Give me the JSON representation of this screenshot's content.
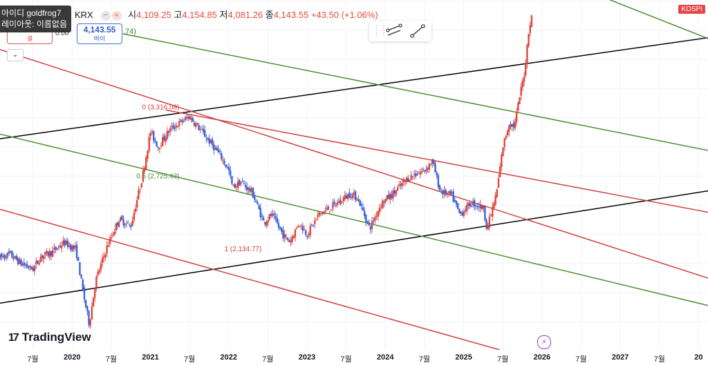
{
  "tooltip": {
    "line1": "아이디 goldfrog7",
    "line2": "레이아웃: 이름없음"
  },
  "header": {
    "exchange": "· KRX",
    "open_label": "시",
    "open": "4,109.25",
    "high_label": "고",
    "high": "4,154.85",
    "low_label": "저",
    "low": "4,081.26",
    "close_label": "종",
    "close": "4,143.55",
    "change": "+43.50 (+1.06%)",
    "dash_icon_glyph": "−",
    "wave_icon_glyph": "≈"
  },
  "trade": {
    "sell_price": "4,143.55",
    "sell_label": "셀",
    "spread": "0.00",
    "buy_price": "4,143.55",
    "buy_label": "바이",
    "truncated_value": ".74)"
  },
  "collapse_glyph": "⌄",
  "symbol_badge": "KOSPI",
  "logo": {
    "mark": "17",
    "text": "TradingView"
  },
  "bolt_glyph": "⚡",
  "chart_data": {
    "type": "line",
    "title": "KOSPI",
    "fib_labels": [
      {
        "level": "0",
        "text": "0 (3,316.08)",
        "value": 3316.08
      },
      {
        "level": "0.5",
        "text": "0.5 (2,725.43)",
        "value": 2725.43
      },
      {
        "level": "1",
        "text": "1 (2,134.77)",
        "value": 2134.77
      }
    ],
    "time_axis": [
      {
        "label": "7월",
        "year": 2019.5
      },
      {
        "label": "2020",
        "year": 2020.0,
        "bold": true
      },
      {
        "label": "7월",
        "year": 2020.5
      },
      {
        "label": "2021",
        "year": 2021.0,
        "bold": true
      },
      {
        "label": "7월",
        "year": 2021.5
      },
      {
        "label": "2022",
        "year": 2022.0,
        "bold": true
      },
      {
        "label": "7월",
        "year": 2022.5
      },
      {
        "label": "2023",
        "year": 2023.0,
        "bold": true
      },
      {
        "label": "7월",
        "year": 2023.5
      },
      {
        "label": "2024",
        "year": 2024.0,
        "bold": true
      },
      {
        "label": "7월",
        "year": 2024.5
      },
      {
        "label": "2025",
        "year": 2025.0,
        "bold": true
      },
      {
        "label": "7월",
        "year": 2025.5
      },
      {
        "label": "2026",
        "year": 2026.0,
        "bold": true
      },
      {
        "label": "7월",
        "year": 2026.5
      },
      {
        "label": "2027",
        "year": 2027.0,
        "bold": true
      },
      {
        "label": "7월",
        "year": 2027.5
      },
      {
        "label": "20",
        "year": 2028.0,
        "bold": true
      }
    ],
    "x_range": [
      2019.08,
      2028.12
    ],
    "y_range": [
      1260,
      4260
    ],
    "price_path": [
      [
        2019.08,
        2050
      ],
      [
        2019.2,
        2080
      ],
      [
        2019.35,
        2000
      ],
      [
        2019.5,
        1950
      ],
      [
        2019.6,
        2060
      ],
      [
        2019.75,
        2100
      ],
      [
        2019.9,
        2180
      ],
      [
        2020.05,
        2120
      ],
      [
        2020.15,
        1720
      ],
      [
        2020.22,
        1480
      ],
      [
        2020.3,
        1850
      ],
      [
        2020.45,
        2150
      ],
      [
        2020.6,
        2380
      ],
      [
        2020.75,
        2320
      ],
      [
        2020.9,
        2750
      ],
      [
        2021.0,
        3130
      ],
      [
        2021.1,
        3000
      ],
      [
        2021.25,
        3150
      ],
      [
        2021.45,
        3240
      ],
      [
        2021.5,
        3260
      ],
      [
        2021.6,
        3180
      ],
      [
        2021.75,
        3050
      ],
      [
        2021.9,
        2920
      ],
      [
        2022.0,
        2800
      ],
      [
        2022.05,
        2650
      ],
      [
        2022.15,
        2700
      ],
      [
        2022.3,
        2610
      ],
      [
        2022.45,
        2350
      ],
      [
        2022.55,
        2420
      ],
      [
        2022.7,
        2240
      ],
      [
        2022.78,
        2190
      ],
      [
        2022.9,
        2350
      ],
      [
        2023.0,
        2250
      ],
      [
        2023.15,
        2420
      ],
      [
        2023.35,
        2500
      ],
      [
        2023.55,
        2600
      ],
      [
        2023.65,
        2560
      ],
      [
        2023.8,
        2300
      ],
      [
        2023.95,
        2520
      ],
      [
        2024.1,
        2600
      ],
      [
        2024.3,
        2740
      ],
      [
        2024.5,
        2800
      ],
      [
        2024.6,
        2880
      ],
      [
        2024.7,
        2620
      ],
      [
        2024.85,
        2580
      ],
      [
        2024.95,
        2420
      ],
      [
        2025.1,
        2520
      ],
      [
        2025.25,
        2480
      ],
      [
        2025.3,
        2300
      ],
      [
        2025.42,
        2600
      ],
      [
        2025.5,
        3000
      ],
      [
        2025.58,
        3200
      ],
      [
        2025.65,
        3180
      ],
      [
        2025.72,
        3450
      ],
      [
        2025.78,
        3650
      ],
      [
        2025.83,
        4000
      ],
      [
        2025.88,
        4143.55
      ]
    ],
    "lines": [
      {
        "color": "#000000",
        "pts": [
          [
            2019.08,
            3070
          ],
          [
            2028.12,
            3937
          ]
        ]
      },
      {
        "color": "#000000",
        "pts": [
          [
            2019.08,
            1660
          ],
          [
            2028.12,
            2623
          ]
        ]
      },
      {
        "color": "#d13f3f",
        "pts": [
          [
            2019.08,
            3835
          ],
          [
            2028.12,
            1875
          ]
        ]
      },
      {
        "color": "#d13f3f",
        "pts": [
          [
            2019.08,
            2465
          ],
          [
            2025.46,
            1260
          ]
        ]
      },
      {
        "color": "#d13f3f",
        "pts": [
          [
            2021.2,
            3316.08
          ],
          [
            2028.12,
            2440
          ]
        ]
      },
      {
        "color": "#4a8f2e",
        "pts": [
          [
            2019.08,
            3110
          ],
          [
            2028.12,
            1640
          ]
        ]
      },
      {
        "color": "#4a8f2e",
        "pts": [
          [
            2020.65,
            3970
          ],
          [
            2028.12,
            2970
          ]
        ]
      },
      {
        "color": "#4a8f2e",
        "pts": [
          [
            2026.87,
            4260
          ],
          [
            2028.12,
            3930
          ]
        ]
      }
    ]
  }
}
